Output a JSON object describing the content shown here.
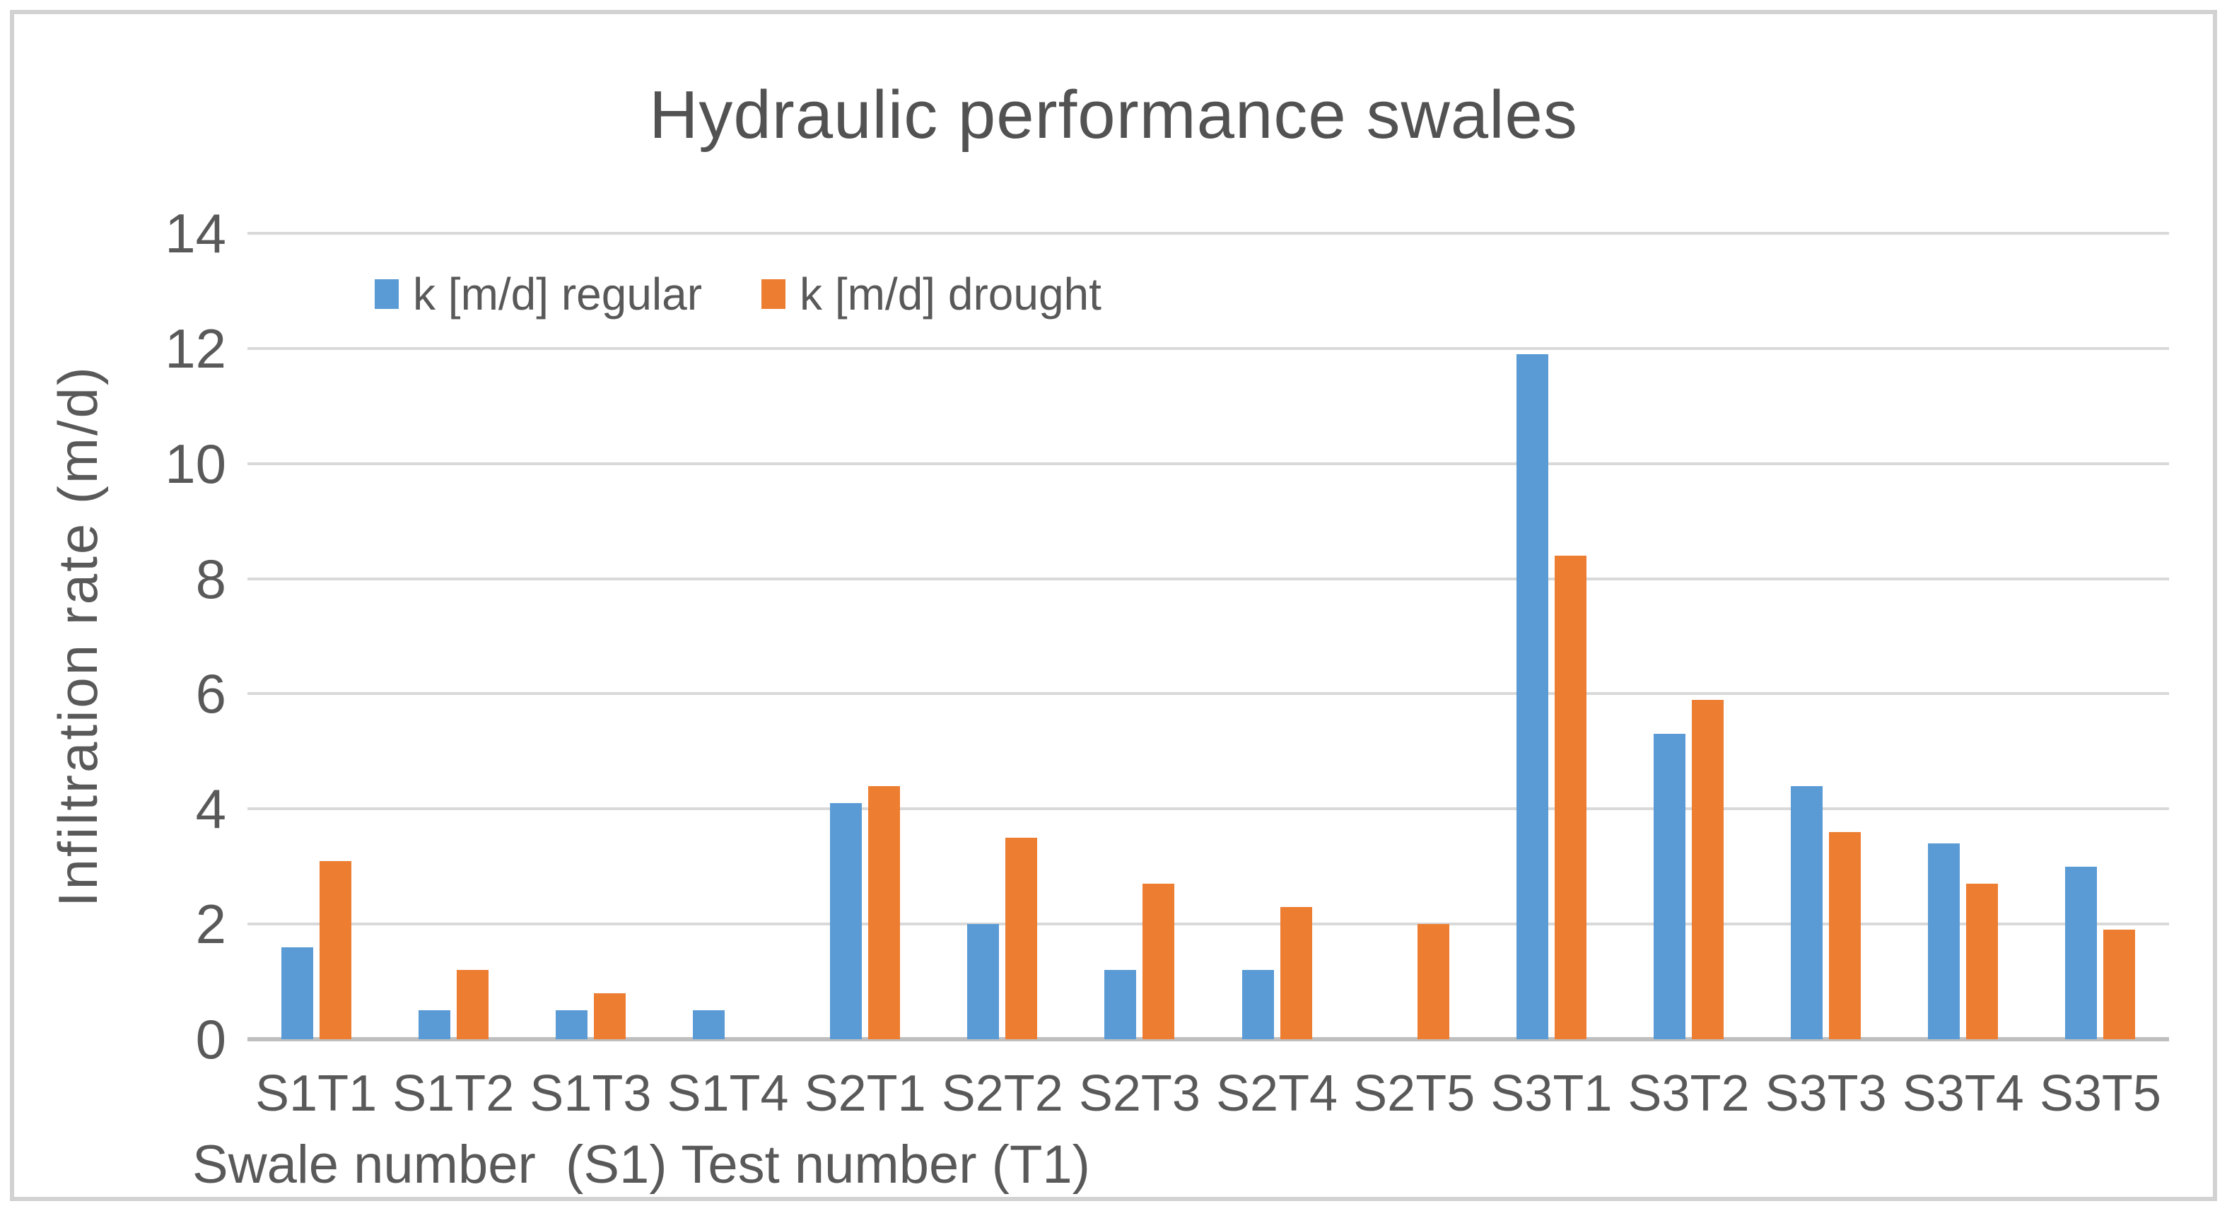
{
  "colors": {
    "series_regular": "#5B9BD5",
    "series_drought": "#ED7D31",
    "text": "#595959",
    "gridline": "#D9D9D9",
    "axis_line": "#BFBFBF",
    "frame_border": "#D2D2D2"
  },
  "chart_data": {
    "type": "bar",
    "title": "Hydraulic performance swales",
    "xlabel": "Swale number  (S1) Test number (T1)",
    "ylabel": "Infiltration rate (m/d)",
    "ylim": [
      0,
      14
    ],
    "yticks": [
      0,
      2,
      4,
      6,
      8,
      10,
      12,
      14
    ],
    "grid": true,
    "legend_position": "top-left-inside",
    "categories": [
      "S1T1",
      "S1T2",
      "S1T3",
      "S1T4",
      "S2T1",
      "S2T2",
      "S2T3",
      "S2T4",
      "S2T5",
      "S3T1",
      "S3T2",
      "S3T3",
      "S3T4",
      "S3T5"
    ],
    "series": [
      {
        "name": "k [m/d] regular",
        "color": "#5B9BD5",
        "values": [
          1.6,
          0.5,
          0.5,
          0.5,
          4.1,
          2.0,
          1.2,
          1.2,
          0,
          11.9,
          5.3,
          4.4,
          3.4,
          3.0
        ]
      },
      {
        "name": "k [m/d] drought",
        "color": "#ED7D31",
        "values": [
          3.1,
          1.2,
          0.8,
          0,
          4.4,
          3.5,
          2.7,
          2.3,
          2.0,
          8.4,
          5.9,
          3.6,
          2.7,
          1.9
        ]
      }
    ]
  }
}
